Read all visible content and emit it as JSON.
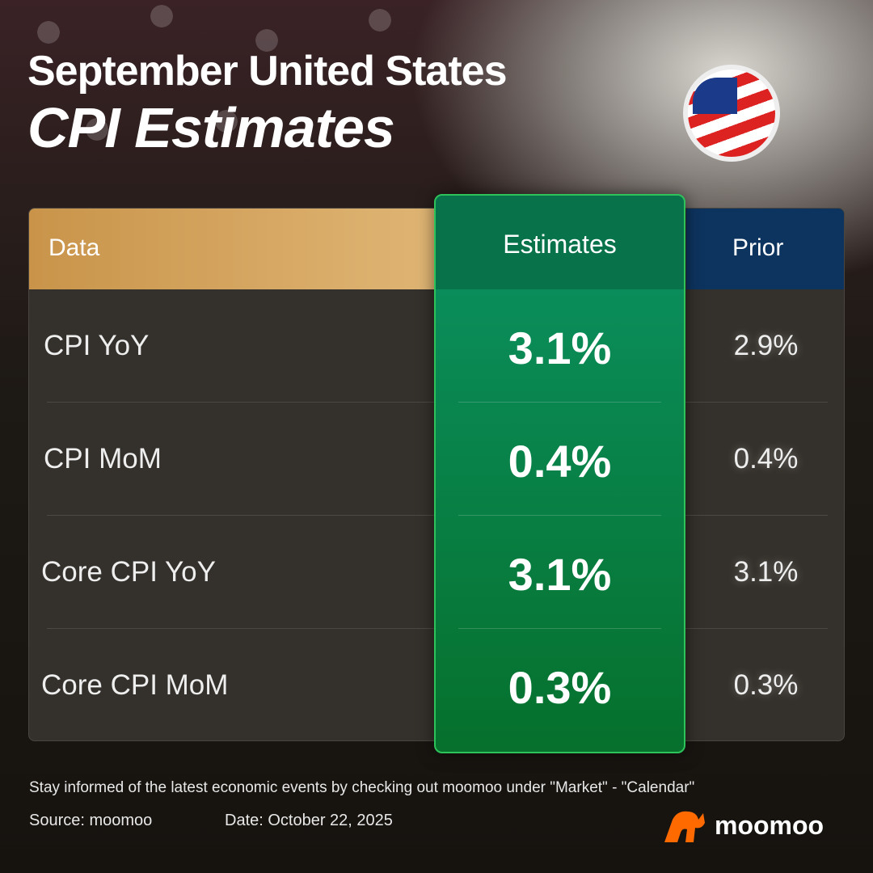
{
  "title": {
    "line1": "September United States",
    "line2": "CPI Estimates"
  },
  "table": {
    "headers": {
      "data": "Data",
      "estimates": "Estimates",
      "prior": "Prior"
    },
    "rows": [
      {
        "label": "CPI YoY",
        "estimate": "3.1%",
        "prior": "2.9%"
      },
      {
        "label": "CPI MoM",
        "estimate": "0.4%",
        "prior": "0.4%"
      },
      {
        "label": "Core CPI YoY",
        "estimate": "3.1%",
        "prior": "3.1%"
      },
      {
        "label": "Core CPI MoM",
        "estimate": "0.3%",
        "prior": "0.3%"
      }
    ]
  },
  "footer": {
    "note": "Stay informed of the latest economic events by checking out moomoo under \"Market\" - \"Calendar\"",
    "source": "Source: moomoo",
    "date": "Date: October 22, 2025"
  },
  "brand": {
    "name": "moomoo",
    "color": "#ff6a00"
  },
  "colors": {
    "data_header": "#d4a55f",
    "estimates": "#0a8d5a",
    "prior_header": "#0d345f"
  }
}
